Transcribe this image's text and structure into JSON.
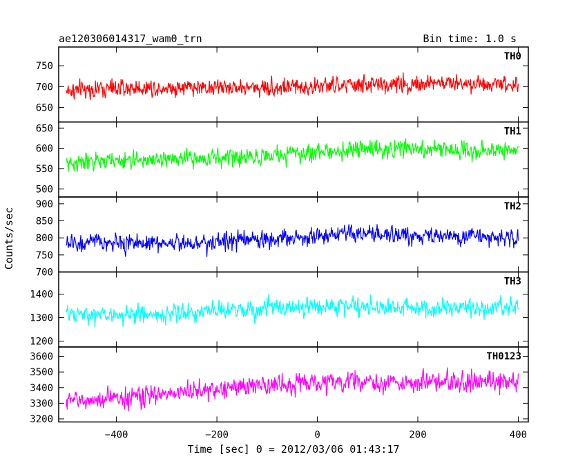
{
  "header": {
    "title": "ae120306014317_wam0_trn",
    "bin_time": "Bin time: 1.0 s"
  },
  "chart_data": {
    "type": "line",
    "xlabel": "Time [sec] 0 = 2012/03/06 01:43:17",
    "ylabel": "Counts/sec",
    "xlim": [
      -515,
      420
    ],
    "x_ticks": [
      -400,
      -200,
      0,
      200,
      400
    ],
    "x_tick_labels": [
      "−400",
      "−200",
      "0",
      "200",
      "400"
    ],
    "x_range": [
      -500,
      400
    ],
    "bin_seconds": 1.0,
    "panels": [
      {
        "series_name": "TH0",
        "color": "#ff0000",
        "ylim": [
          615,
          795
        ],
        "y_ticks": [
          650,
          700,
          750
        ],
        "mean_start": 690,
        "mean_end": 705,
        "noise": 22,
        "y_min": 640,
        "y_max": 795
      },
      {
        "series_name": "TH1",
        "color": "#00ff00",
        "ylim": [
          480,
          665
        ],
        "y_ticks": [
          500,
          550,
          600,
          650
        ],
        "mean_start": 560,
        "mean_end": 595,
        "noise": 22,
        "y_min": 480,
        "y_max": 665
      },
      {
        "series_name": "TH2",
        "color": "#0000ff",
        "ylim": [
          700,
          920
        ],
        "y_ticks": [
          700,
          750,
          800,
          850,
          900
        ],
        "mean_start": 780,
        "mean_end": 805,
        "noise": 27,
        "y_min": 700,
        "y_max": 920
      },
      {
        "series_name": "TH3",
        "color": "#00ffff",
        "ylim": [
          1175,
          1495
        ],
        "y_ticks": [
          1200,
          1300,
          1400
        ],
        "mean_start": 1310,
        "mean_end": 1345,
        "noise": 40,
        "y_min": 1175,
        "y_max": 1495
      },
      {
        "series_name": "TH0123",
        "color": "#ff00ff",
        "ylim": [
          3180,
          3660
        ],
        "y_ticks": [
          3200,
          3300,
          3400,
          3500,
          3600
        ],
        "mean_start": 3320,
        "mean_end": 3440,
        "noise": 65,
        "y_min": 3180,
        "y_max": 3660
      }
    ]
  }
}
